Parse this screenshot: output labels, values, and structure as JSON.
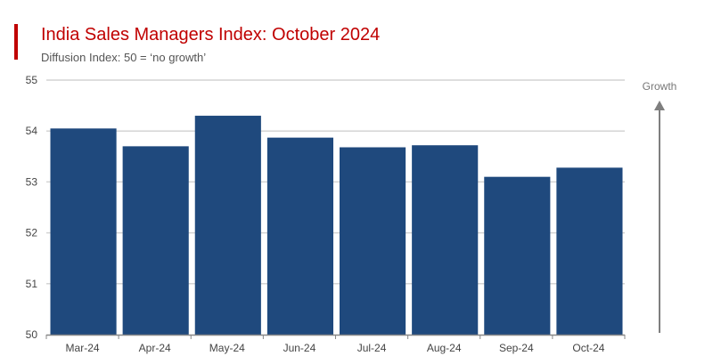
{
  "chart_data": {
    "type": "bar",
    "title": "India Sales Managers Index: October 2024",
    "subtitle": "Diffusion Index: 50 = ‘no growth’",
    "categories": [
      "Mar-24",
      "Apr-24",
      "May-24",
      "Jun-24",
      "Jul-24",
      "Aug-24",
      "Sep-24",
      "Oct-24"
    ],
    "values": [
      54.05,
      53.7,
      54.3,
      53.87,
      53.68,
      53.72,
      53.1,
      53.28
    ],
    "ylim": [
      50,
      55
    ],
    "yticks": [
      50,
      51,
      52,
      53,
      54,
      55
    ],
    "grid": true,
    "annotation": "Growth",
    "colors": {
      "bar": "#1f497d",
      "title": "#c00000",
      "grid": "#d4d4d4",
      "axis": "#888888",
      "arrow": "#7f7f7f"
    }
  }
}
